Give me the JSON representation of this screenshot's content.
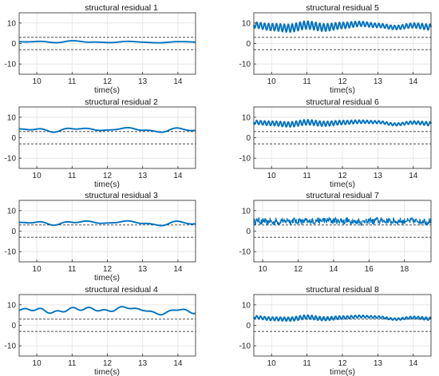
{
  "chart_data": [
    {
      "type": "line",
      "title": "structural residual 1",
      "xlabel": "time(s)",
      "ylabel": "",
      "xlim": [
        9.5,
        14.5
      ],
      "ylim": [
        -15,
        15
      ],
      "xticks": [
        10,
        11,
        12,
        13,
        14
      ],
      "yticks": [
        -10,
        0,
        10
      ],
      "grid": true,
      "thresholds": [
        3,
        -3
      ],
      "colors": {
        "line": "#0072BD",
        "threshold": "#333333"
      },
      "series": [
        {
          "x": [
            9.5,
            10.0,
            10.5,
            11.0,
            11.5,
            12.0,
            12.5,
            13.0,
            13.5,
            14.0,
            14.5
          ],
          "y": [
            0.8,
            1.0,
            0.5,
            1.2,
            0.8,
            0.4,
            1.0,
            0.7,
            0.3,
            1.0,
            0.6
          ]
        }
      ]
    },
    {
      "type": "line",
      "title": "structural residual 2",
      "xlabel": "time(s)",
      "ylabel": "",
      "xlim": [
        9.5,
        14.5
      ],
      "ylim": [
        -15,
        15
      ],
      "xticks": [
        10,
        11,
        12,
        13,
        14
      ],
      "yticks": [
        -10,
        0,
        10
      ],
      "grid": true,
      "thresholds": [
        3,
        -3
      ],
      "colors": {
        "line": "#0072BD",
        "threshold": "#333333"
      },
      "series": [
        {
          "x": [
            9.5,
            10.0,
            10.5,
            11.0,
            11.5,
            12.0,
            12.5,
            13.0,
            13.5,
            14.0,
            14.5
          ],
          "y": [
            4.0,
            4.2,
            3.0,
            4.6,
            4.2,
            3.5,
            4.8,
            3.8,
            2.8,
            4.6,
            3.3
          ]
        }
      ]
    },
    {
      "type": "line",
      "title": "structural residual 3",
      "xlabel": "time(s)",
      "ylabel": "",
      "xlim": [
        9.5,
        14.5
      ],
      "ylim": [
        -15,
        15
      ],
      "xticks": [
        10,
        11,
        12,
        13,
        14
      ],
      "yticks": [
        -10,
        0,
        10
      ],
      "grid": true,
      "thresholds": [
        3,
        -3
      ],
      "colors": {
        "line": "#0072BD",
        "threshold": "#333333"
      },
      "series": [
        {
          "x": [
            9.5,
            10.0,
            10.5,
            11.0,
            11.5,
            12.0,
            12.5,
            13.0,
            13.5,
            14.0,
            14.5
          ],
          "y": [
            4.0,
            4.4,
            3.2,
            4.5,
            4.6,
            3.7,
            4.9,
            3.9,
            2.8,
            4.7,
            3.3
          ]
        }
      ]
    },
    {
      "type": "line",
      "title": "structural residual 4",
      "xlabel": "time(s)",
      "ylabel": "",
      "xlim": [
        9.5,
        14.5
      ],
      "ylim": [
        -15,
        15
      ],
      "xticks": [
        10,
        11,
        12,
        13,
        14
      ],
      "yticks": [
        -10,
        0,
        10
      ],
      "grid": true,
      "thresholds": [
        3,
        -3
      ],
      "colors": {
        "line": "#0072BD",
        "threshold": "#333333"
      },
      "series": [
        {
          "x": [
            9.5,
            10.0,
            10.5,
            11.0,
            11.5,
            12.0,
            12.5,
            13.0,
            13.5,
            14.0,
            14.5
          ],
          "y": [
            7.6,
            7.8,
            6.3,
            8.0,
            8.1,
            7.0,
            8.8,
            7.5,
            5.5,
            7.8,
            6.2
          ]
        }
      ]
    },
    {
      "type": "line",
      "title": "structural residual 5",
      "xlabel": "time(s)",
      "ylabel": "",
      "xlim": [
        9.5,
        14.5
      ],
      "ylim": [
        -15,
        15
      ],
      "xticks": [
        10,
        11,
        12,
        13,
        14
      ],
      "yticks": [
        -10,
        0,
        10
      ],
      "grid": true,
      "thresholds": [
        3,
        -3
      ],
      "colors": {
        "line": "#0072BD",
        "threshold": "#333333"
      },
      "series": [
        {
          "x": [
            9.5,
            10.0,
            10.5,
            11.0,
            11.5,
            12.0,
            12.5,
            13.0,
            13.5,
            14.0,
            14.5
          ],
          "y": [
            9.0,
            8.0,
            7.5,
            9.0,
            7.8,
            8.8,
            9.6,
            8.8,
            7.8,
            8.8,
            8.0
          ]
        }
      ]
    },
    {
      "type": "line",
      "title": "structural residual 6",
      "xlabel": "time(s)",
      "ylabel": "",
      "xlim": [
        9.5,
        14.5
      ],
      "ylim": [
        -15,
        15
      ],
      "xticks": [
        10,
        11,
        12,
        13,
        14
      ],
      "yticks": [
        -10,
        0,
        10
      ],
      "grid": true,
      "thresholds": [
        3,
        -3
      ],
      "colors": {
        "line": "#0072BD",
        "threshold": "#333333"
      },
      "series": [
        {
          "x": [
            9.5,
            10.0,
            10.5,
            11.0,
            11.5,
            12.0,
            12.5,
            13.0,
            13.5,
            14.0,
            14.5
          ],
          "y": [
            7.5,
            7.0,
            6.5,
            7.5,
            6.8,
            7.4,
            7.8,
            7.6,
            6.5,
            7.4,
            6.8
          ]
        }
      ]
    },
    {
      "type": "line",
      "title": "structural residual 7",
      "xlabel": "",
      "ylabel": "",
      "xlim": [
        9.5,
        19.5
      ],
      "ylim": [
        -15,
        15
      ],
      "xticks": [
        10,
        12,
        14,
        16,
        18
      ],
      "yticks": [
        -10,
        0,
        10
      ],
      "grid": true,
      "thresholds": [
        3,
        -3
      ],
      "colors": {
        "line": "#0072BD",
        "threshold": "#333333"
      },
      "series": [
        {
          "x": [
            9.5,
            10.5,
            11.5,
            12.5,
            13.5,
            14.5,
            15.5,
            16.5,
            17.5,
            18.5,
            19.5
          ],
          "y": [
            5.0,
            4.5,
            5.0,
            4.8,
            5.2,
            5.0,
            4.6,
            5.1,
            4.8,
            5.0,
            4.6
          ]
        }
      ]
    },
    {
      "type": "line",
      "title": "structural residual 8",
      "xlabel": "time(s)",
      "ylabel": "",
      "xlim": [
        9.5,
        14.5
      ],
      "ylim": [
        -15,
        15
      ],
      "xticks": [
        10,
        11,
        12,
        13,
        14
      ],
      "yticks": [
        -10,
        0,
        10
      ],
      "grid": true,
      "thresholds": [
        3,
        -3
      ],
      "colors": {
        "line": "#0072BD",
        "threshold": "#333333"
      },
      "series": [
        {
          "x": [
            9.5,
            10.0,
            10.5,
            11.0,
            11.5,
            12.0,
            12.5,
            13.0,
            13.5,
            14.0,
            14.5
          ],
          "y": [
            4.0,
            3.2,
            3.0,
            4.0,
            3.2,
            3.8,
            4.3,
            4.0,
            3.0,
            3.8,
            3.2
          ]
        }
      ]
    }
  ]
}
